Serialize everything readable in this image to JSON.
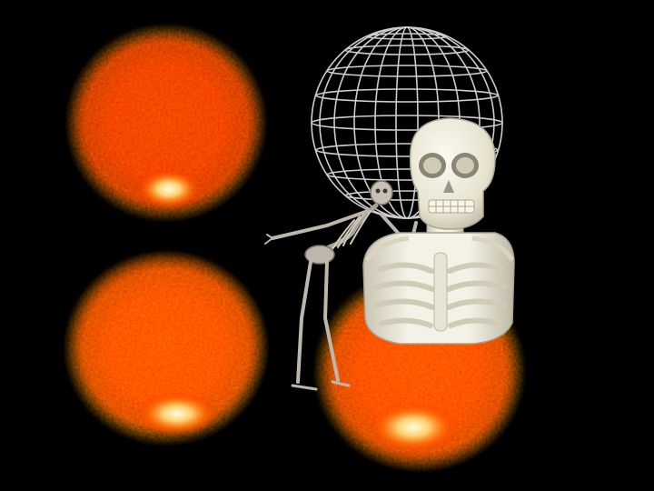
{
  "scene": {
    "background": "#000000",
    "description_elements": [
      "glow-top-left",
      "glow-bottom-left",
      "glow-bottom-right",
      "wireframe-globe",
      "standing-skeleton",
      "skull-bust"
    ]
  },
  "colors": {
    "glow_core": "#fff6c8",
    "glow_mid": "#ff5a00",
    "glow_outer": "#c80000",
    "wireframe": "#dddddd",
    "bone": "#f1efe2",
    "bone_shadow": "#b9b5a2",
    "aged_bone": "#bdb6aa"
  },
  "icons": {
    "globe": "wireframe-globe-icon",
    "skull": "skull-icon"
  }
}
